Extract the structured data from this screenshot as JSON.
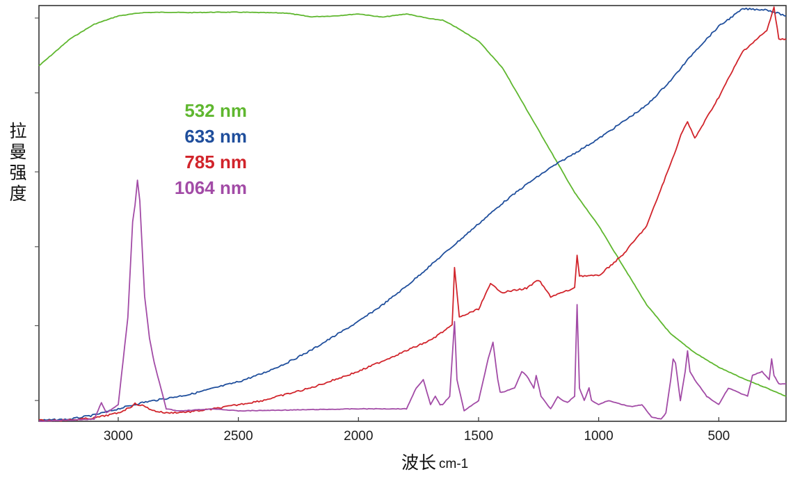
{
  "chart_data": {
    "type": "line",
    "title": "",
    "ylabel": "拉曼强度",
    "xlabel": "波长",
    "xlabel_unit": "cm-1",
    "xlim": [
      3330,
      220
    ],
    "ylim": [
      0,
      100
    ],
    "x_ticks": [
      3000,
      2500,
      2000,
      1500,
      1000,
      500
    ],
    "x_tick_labels": [
      "3000",
      "2500",
      "2000",
      "1500",
      "1000",
      "500"
    ],
    "y_ticks": [
      5,
      23,
      42,
      60,
      79,
      97
    ],
    "y_tick_labels": [
      "",
      "",
      "",
      "",
      "",
      ""
    ],
    "grid": false,
    "legend_position": "upper-left-center",
    "series": [
      {
        "name": "532 nm",
        "color": "#5fb72f",
        "x": [
          3330,
          3200,
          3100,
          3000,
          2900,
          2800,
          2700,
          2600,
          2500,
          2400,
          2300,
          2200,
          2100,
          2000,
          1900,
          1800,
          1700,
          1650,
          1600,
          1500,
          1400,
          1300,
          1200,
          1100,
          1000,
          900,
          800,
          700,
          600,
          500,
          400,
          300,
          220
        ],
        "y": [
          85.5,
          92,
          95.5,
          97.5,
          98.3,
          98.4,
          98.3,
          98.4,
          98.4,
          98.3,
          98.2,
          97.3,
          97.5,
          98,
          97.2,
          98,
          96.8,
          96.5,
          95,
          91.5,
          85,
          75,
          65,
          55,
          47,
          37.5,
          28,
          21,
          16.5,
          13,
          10.3,
          8,
          6
        ]
      },
      {
        "name": "633 nm",
        "color": "#1f4e9c",
        "x": [
          3330,
          3200,
          3100,
          3000,
          2900,
          2800,
          2700,
          2600,
          2500,
          2400,
          2300,
          2200,
          2100,
          2000,
          1900,
          1800,
          1700,
          1600,
          1500,
          1400,
          1300,
          1200,
          1100,
          1000,
          900,
          800,
          700,
          600,
          500,
          400,
          300,
          220
        ],
        "y": [
          0.2,
          0.5,
          1.5,
          3,
          4.5,
          5.5,
          6.5,
          8,
          9.5,
          11.5,
          14,
          17,
          20.5,
          24,
          28,
          32.5,
          37.5,
          42.5,
          47.5,
          52.5,
          57,
          61,
          64.5,
          68,
          72,
          76,
          82,
          89,
          95,
          99.2,
          99,
          97.5
        ]
      },
      {
        "name": "785 nm",
        "color": "#d1242b",
        "x": [
          3330,
          3200,
          3100,
          3000,
          2950,
          2930,
          2900,
          2850,
          2800,
          2700,
          2600,
          2500,
          2400,
          2300,
          2200,
          2100,
          2000,
          1900,
          1800,
          1700,
          1650,
          1610,
          1600,
          1580,
          1500,
          1450,
          1400,
          1300,
          1250,
          1200,
          1100,
          1090,
          1080,
          1000,
          900,
          800,
          700,
          650,
          630,
          600,
          500,
          400,
          300,
          270,
          250,
          220
        ],
        "y": [
          0.2,
          0.3,
          0.8,
          2,
          3.4,
          4.2,
          3.8,
          2.5,
          2,
          2.3,
          3,
          4,
          5,
          6.5,
          8,
          10,
          12,
          14.5,
          17,
          19.5,
          21.5,
          23,
          37,
          25,
          27,
          33,
          31,
          32,
          34,
          30,
          32,
          40,
          35,
          35,
          40,
          47,
          62,
          70,
          72,
          68,
          78,
          89,
          94,
          99.5,
          92,
          92
        ]
      },
      {
        "name": "1064 nm",
        "color": "#a24ba6",
        "x": [
          3330,
          3100,
          3070,
          3050,
          3000,
          2960,
          2940,
          2930,
          2920,
          2910,
          2890,
          2870,
          2850,
          2800,
          2750,
          2600,
          2500,
          2000,
          1800,
          1760,
          1730,
          1700,
          1680,
          1660,
          1650,
          1620,
          1600,
          1590,
          1560,
          1500,
          1460,
          1440,
          1420,
          1410,
          1400,
          1350,
          1320,
          1300,
          1270,
          1260,
          1240,
          1200,
          1170,
          1150,
          1130,
          1100,
          1090,
          1080,
          1060,
          1040,
          1030,
          1000,
          960,
          900,
          860,
          820,
          780,
          740,
          720,
          700,
          690,
          680,
          660,
          640,
          630,
          620,
          600,
          550,
          500,
          460,
          420,
          380,
          360,
          320,
          290,
          280,
          270,
          250,
          220
        ],
        "y": [
          0,
          0.5,
          4.5,
          2,
          4,
          25,
          48,
          52,
          58,
          53,
          30,
          20,
          14,
          3,
          2.5,
          3,
          2.5,
          3,
          3,
          8,
          10,
          4,
          6,
          4,
          4,
          6,
          24,
          10,
          2.5,
          5,
          15,
          19,
          10,
          7,
          7,
          8,
          12,
          11,
          8,
          11,
          6,
          3,
          6,
          5,
          4.5,
          6,
          28,
          8,
          5,
          8,
          5,
          4,
          5,
          4,
          3.5,
          4,
          1,
          0.5,
          2,
          10,
          15,
          14,
          5,
          12,
          17,
          12,
          10,
          6,
          4,
          8,
          7,
          6,
          11,
          12,
          10,
          15,
          11,
          9,
          9
        ]
      }
    ]
  }
}
